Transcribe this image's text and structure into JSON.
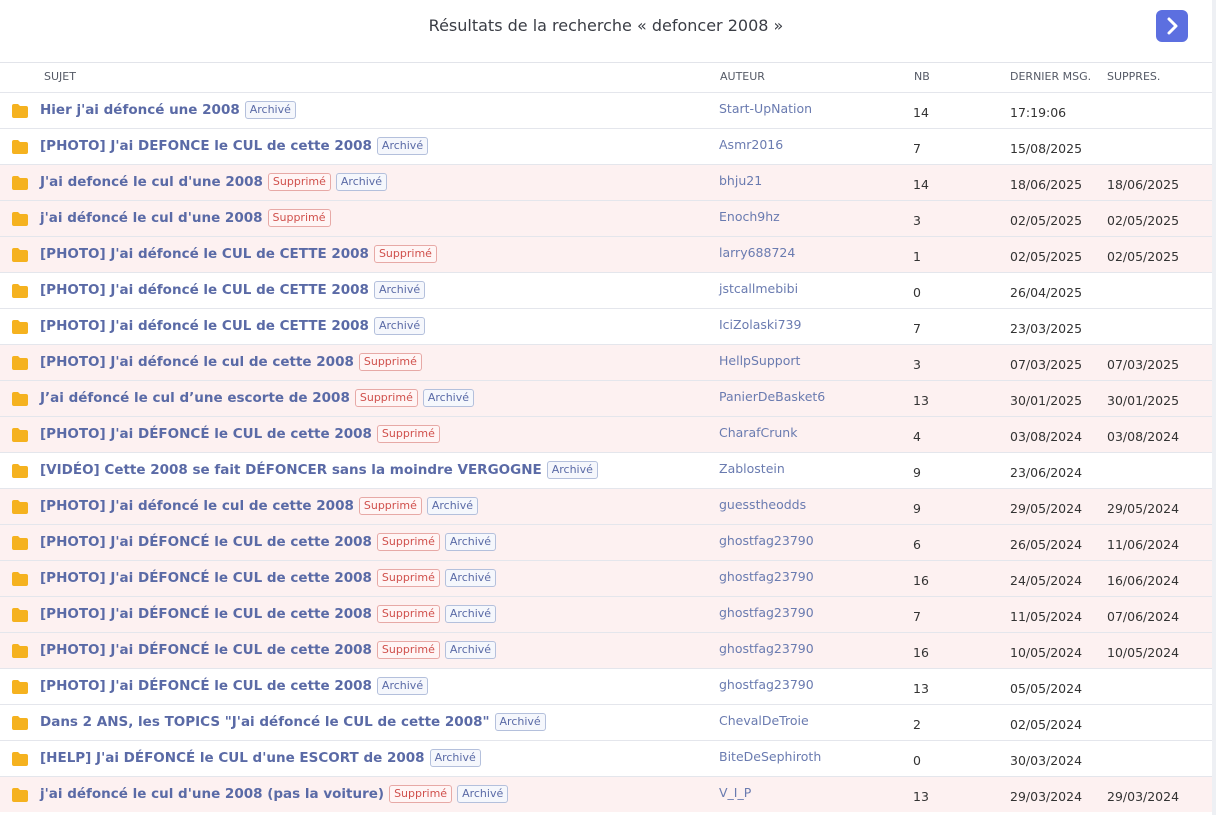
{
  "header": {
    "title": "Résultats de la recherche « defoncer 2008 »"
  },
  "table": {
    "headers": [
      "SUJET",
      "AUTEUR",
      "NB",
      "DERNIER MSG.",
      "SUPPRES."
    ],
    "rows": [
      {
        "subject": "Hier j'ai défoncé une 2008",
        "badges": [
          "Archivé"
        ],
        "author": "Start-UpNation",
        "count": 14,
        "last": "17:19:06"
      },
      {
        "subject": "[PHOTO] J'ai DEFONCE le CUL de cette 2008",
        "badges": [
          "Archivé"
        ],
        "author": "Asmr2016",
        "count": 7,
        "last": "15/08/2025"
      },
      {
        "subject": "J'ai defoncé le cul d'une 2008",
        "badges": [
          "Supprimé",
          "Archivé"
        ],
        "author": "bhju21",
        "count": 14,
        "last": "18/06/2025",
        "deleted": "18/06/2025"
      },
      {
        "subject": "j'ai défoncé le cul d'une 2008",
        "badges": [
          "Supprimé"
        ],
        "author": "Enoch9hz",
        "count": 3,
        "last": "02/05/2025",
        "deleted": "02/05/2025"
      },
      {
        "subject": "[PHOTO] J'ai défoncé le CUL de CETTE 2008",
        "badges": [
          "Supprimé"
        ],
        "author": "larry688724",
        "count": 1,
        "last": "02/05/2025",
        "deleted": "02/05/2025"
      },
      {
        "subject": "[PHOTO] J'ai défoncé le CUL de CETTE 2008",
        "badges": [
          "Archivé"
        ],
        "author": "jstcallmebibi",
        "count": 0,
        "last": "26/04/2025"
      },
      {
        "subject": "[PHOTO] J'ai défoncé le CUL de CETTE 2008",
        "badges": [
          "Archivé"
        ],
        "author": "IciZolaski739",
        "count": 7,
        "last": "23/03/2025"
      },
      {
        "subject": "[PHOTO] J'ai défoncé le cul de cette 2008",
        "badges": [
          "Supprimé"
        ],
        "author": "HellpSupport",
        "count": 3,
        "last": "07/03/2025",
        "deleted": "07/03/2025"
      },
      {
        "subject": "J’ai défoncé le cul d’une escorte de 2008",
        "badges": [
          "Supprimé",
          "Archivé"
        ],
        "author": "PanierDeBasket6",
        "count": 13,
        "last": "30/01/2025",
        "deleted": "30/01/2025"
      },
      {
        "subject": "[PHOTO] J'ai DÉFONCÉ le CUL de cette 2008",
        "badges": [
          "Supprimé"
        ],
        "author": "CharafCrunk",
        "count": 4,
        "last": "03/08/2024",
        "deleted": "03/08/2024"
      },
      {
        "subject": "[VIDÉO] Cette 2008 se fait DÉFONCER sans la moindre VERGOGNE",
        "badges": [
          "Archivé"
        ],
        "author": "Zablostein",
        "count": 9,
        "last": "23/06/2024"
      },
      {
        "subject": "[PHOTO] J'ai défoncé le cul de cette 2008",
        "badges": [
          "Supprimé",
          "Archivé"
        ],
        "author": "guesstheodds",
        "count": 9,
        "last": "29/05/2024",
        "deleted": "29/05/2024"
      },
      {
        "subject": "[PHOTO] J'ai DÉFONCÉ le CUL de cette 2008",
        "badges": [
          "Supprimé",
          "Archivé"
        ],
        "author": "ghostfag23790",
        "count": 6,
        "last": "26/05/2024",
        "deleted": "11/06/2024"
      },
      {
        "subject": "[PHOTO] J'ai DÉFONCÉ le CUL de cette 2008",
        "badges": [
          "Supprimé",
          "Archivé"
        ],
        "author": "ghostfag23790",
        "count": 16,
        "last": "24/05/2024",
        "deleted": "16/06/2024"
      },
      {
        "subject": "[PHOTO] J'ai DÉFONCÉ le CUL de cette 2008",
        "badges": [
          "Supprimé",
          "Archivé"
        ],
        "author": "ghostfag23790",
        "count": 7,
        "last": "11/05/2024",
        "deleted": "07/06/2024"
      },
      {
        "subject": "[PHOTO] J'ai DÉFONCÉ le CUL de cette 2008",
        "badges": [
          "Supprimé",
          "Archivé"
        ],
        "author": "ghostfag23790",
        "count": 16,
        "last": "10/05/2024",
        "deleted": "10/05/2024"
      },
      {
        "subject": "[PHOTO] J'ai DÉFONCÉ le CUL de cette 2008",
        "badges": [
          "Archivé"
        ],
        "author": "ghostfag23790",
        "count": 13,
        "last": "05/05/2024"
      },
      {
        "subject": "Dans 2 ANS, les TOPICS \"J'ai défoncé le CUL de cette 2008\"",
        "badges": [
          "Archivé"
        ],
        "author": "ChevalDeTroie",
        "count": 2,
        "last": "02/05/2024"
      },
      {
        "subject": "[HELP] J'ai DÉFONCÉ le CUL d'une ESCORT de 2008",
        "badges": [
          "Archivé"
        ],
        "author": "BiteDeSephiroth",
        "count": 0,
        "last": "30/03/2024"
      },
      {
        "subject": "j'ai défoncé le cul d'une 2008 (pas la voiture)",
        "badges": [
          "Supprimé",
          "Archivé"
        ],
        "author": "V_I_P",
        "count": 13,
        "last": "29/03/2024",
        "deleted": "29/03/2024"
      }
    ]
  }
}
